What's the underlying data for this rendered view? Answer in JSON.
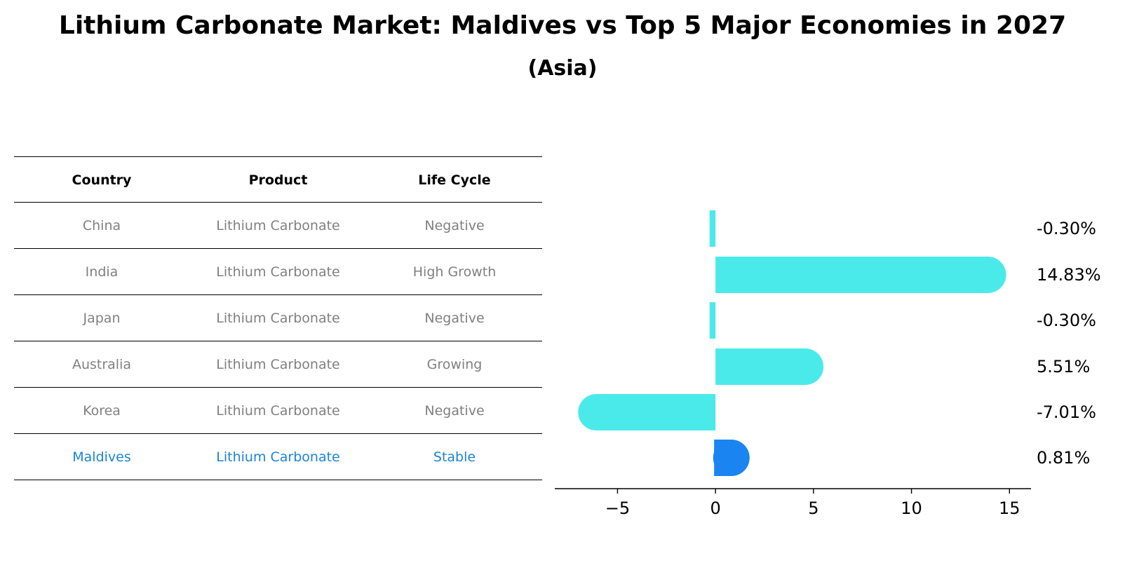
{
  "title": "Lithium Carbonate Market: Maldives vs Top 5 Major Economies in 2027",
  "subtitle": "(Asia)",
  "table": {
    "headers": [
      "Country",
      "Product",
      "Life Cycle"
    ],
    "rows": [
      {
        "country": "China",
        "product": "Lithium Carbonate",
        "life_cycle": "Negative"
      },
      {
        "country": "India",
        "product": "Lithium Carbonate",
        "life_cycle": "High Growth"
      },
      {
        "country": "Japan",
        "product": "Lithium Carbonate",
        "life_cycle": "Negative"
      },
      {
        "country": "Australia",
        "product": "Lithium Carbonate",
        "life_cycle": "Growing"
      },
      {
        "country": "Korea",
        "product": "Lithium Carbonate",
        "life_cycle": "Negative"
      },
      {
        "country": "Maldives",
        "product": "Lithium Carbonate",
        "life_cycle": "Stable"
      }
    ]
  },
  "chart_data": {
    "type": "bar",
    "orientation": "horizontal",
    "categories": [
      "China",
      "India",
      "Japan",
      "Australia",
      "Korea",
      "Maldives"
    ],
    "values": [
      -0.3,
      14.83,
      -0.3,
      5.51,
      -7.01,
      0.81
    ],
    "value_labels": [
      "-0.30%",
      "14.83%",
      "-0.30%",
      "5.51%",
      "-7.01%",
      "0.81%"
    ],
    "xlim": [
      -8.2,
      16.1
    ],
    "xticks": [
      -5,
      0,
      5,
      10,
      15
    ],
    "xtick_labels": [
      "−5",
      "0",
      "5",
      "10",
      "15"
    ],
    "xlabel": "",
    "ylabel": "",
    "grid": false,
    "colors": {
      "default": "#4beaea",
      "highlight": "#1a84f0"
    },
    "highlight": "Maldives"
  }
}
